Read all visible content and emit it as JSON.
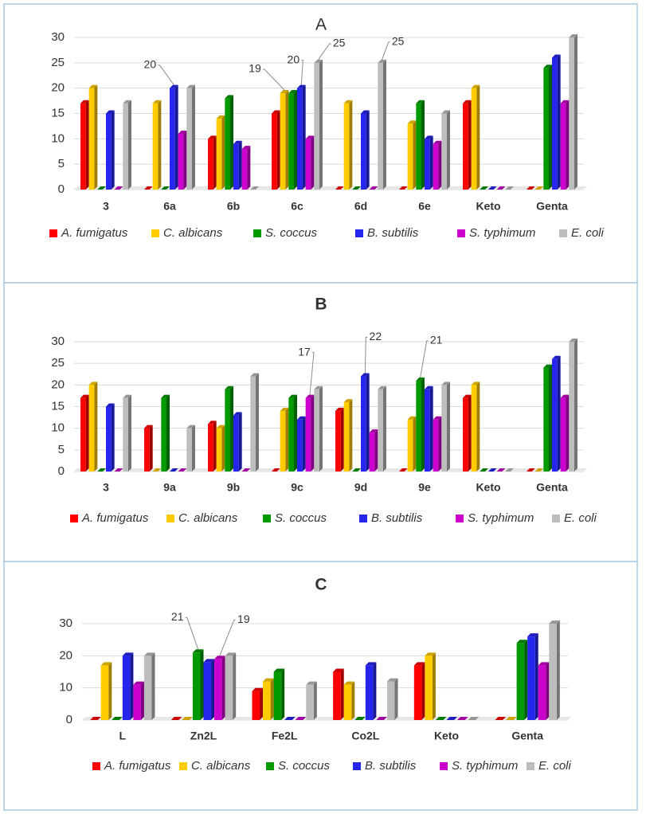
{
  "chart_data": [
    {
      "type": "bar",
      "title": "A",
      "categories": [
        "3",
        "6a",
        "6b",
        "6c",
        "6d",
        "6e",
        "Keto",
        "Genta"
      ],
      "series": [
        {
          "name": "A. fumigatus",
          "color": "#ff0000",
          "values": [
            17,
            0,
            10,
            15,
            0,
            0,
            17,
            0
          ]
        },
        {
          "name": "C. albicans",
          "color": "#ffcc00",
          "values": [
            20,
            17,
            14,
            19,
            17,
            13,
            20,
            0
          ]
        },
        {
          "name": "S. coccus",
          "color": "#009900",
          "values": [
            0,
            0,
            18,
            19,
            0,
            17,
            0,
            24
          ]
        },
        {
          "name": "B. subtilis",
          "color": "#2525ee",
          "values": [
            15,
            20,
            9,
            20,
            15,
            10,
            0,
            26
          ]
        },
        {
          "name": "S. typhimum",
          "color": "#cc00cc",
          "values": [
            0,
            11,
            8,
            10,
            0,
            9,
            0,
            17
          ]
        },
        {
          "name": "E. coli",
          "color": "#bdbdbd",
          "values": [
            17,
            20,
            0,
            25,
            25,
            15,
            0,
            30
          ]
        }
      ],
      "ylim": [
        0,
        30
      ],
      "yticks": [
        0,
        5,
        10,
        15,
        20,
        25,
        30
      ],
      "grid": true
    },
    {
      "type": "bar",
      "title": "B",
      "categories": [
        "3",
        "9a",
        "9b",
        "9c",
        "9d",
        "9e",
        "Keto",
        "Genta"
      ],
      "series": [
        {
          "name": "A. fumigatus",
          "color": "#ff0000",
          "values": [
            17,
            10,
            11,
            0,
            14,
            0,
            17,
            0
          ]
        },
        {
          "name": "C. albicans",
          "color": "#ffcc00",
          "values": [
            20,
            0,
            10,
            14,
            16,
            12,
            20,
            0
          ]
        },
        {
          "name": "S. coccus",
          "color": "#009900",
          "values": [
            0,
            17,
            19,
            17,
            0,
            21,
            0,
            24
          ]
        },
        {
          "name": "B. subtilis",
          "color": "#2525ee",
          "values": [
            15,
            0,
            13,
            12,
            22,
            19,
            0,
            26
          ]
        },
        {
          "name": "S. typhimum",
          "color": "#cc00cc",
          "values": [
            0,
            0,
            0,
            17,
            9,
            12,
            0,
            17
          ]
        },
        {
          "name": "E. coli",
          "color": "#bdbdbd",
          "values": [
            17,
            10,
            22,
            19,
            19,
            20,
            0,
            30
          ]
        }
      ],
      "ylim": [
        0,
        30
      ],
      "yticks": [
        0,
        5,
        10,
        15,
        20,
        25,
        30
      ],
      "grid": true
    },
    {
      "type": "bar",
      "title": "C",
      "categories": [
        "L",
        "Zn2L",
        "Fe2L",
        "Co2L",
        "Keto",
        "Genta"
      ],
      "series": [
        {
          "name": "A. fumigatus",
          "color": "#ff0000",
          "values": [
            0,
            0,
            9,
            15,
            17,
            0
          ]
        },
        {
          "name": "C. albicans",
          "color": "#ffcc00",
          "values": [
            17,
            0,
            12,
            11,
            20,
            0
          ]
        },
        {
          "name": "S. coccus",
          "color": "#009900",
          "values": [
            0,
            21,
            15,
            0,
            0,
            24
          ]
        },
        {
          "name": "B. subtilis",
          "color": "#2525ee",
          "values": [
            20,
            18,
            0,
            17,
            0,
            26
          ]
        },
        {
          "name": "S. typhimum",
          "color": "#cc00cc",
          "values": [
            11,
            19,
            0,
            0,
            0,
            17
          ]
        },
        {
          "name": "E. coli",
          "color": "#bdbdbd",
          "values": [
            20,
            20,
            11,
            12,
            0,
            30
          ]
        }
      ],
      "ylim": [
        0,
        30
      ],
      "yticks": [
        0,
        10,
        20,
        30
      ],
      "grid": true
    }
  ]
}
